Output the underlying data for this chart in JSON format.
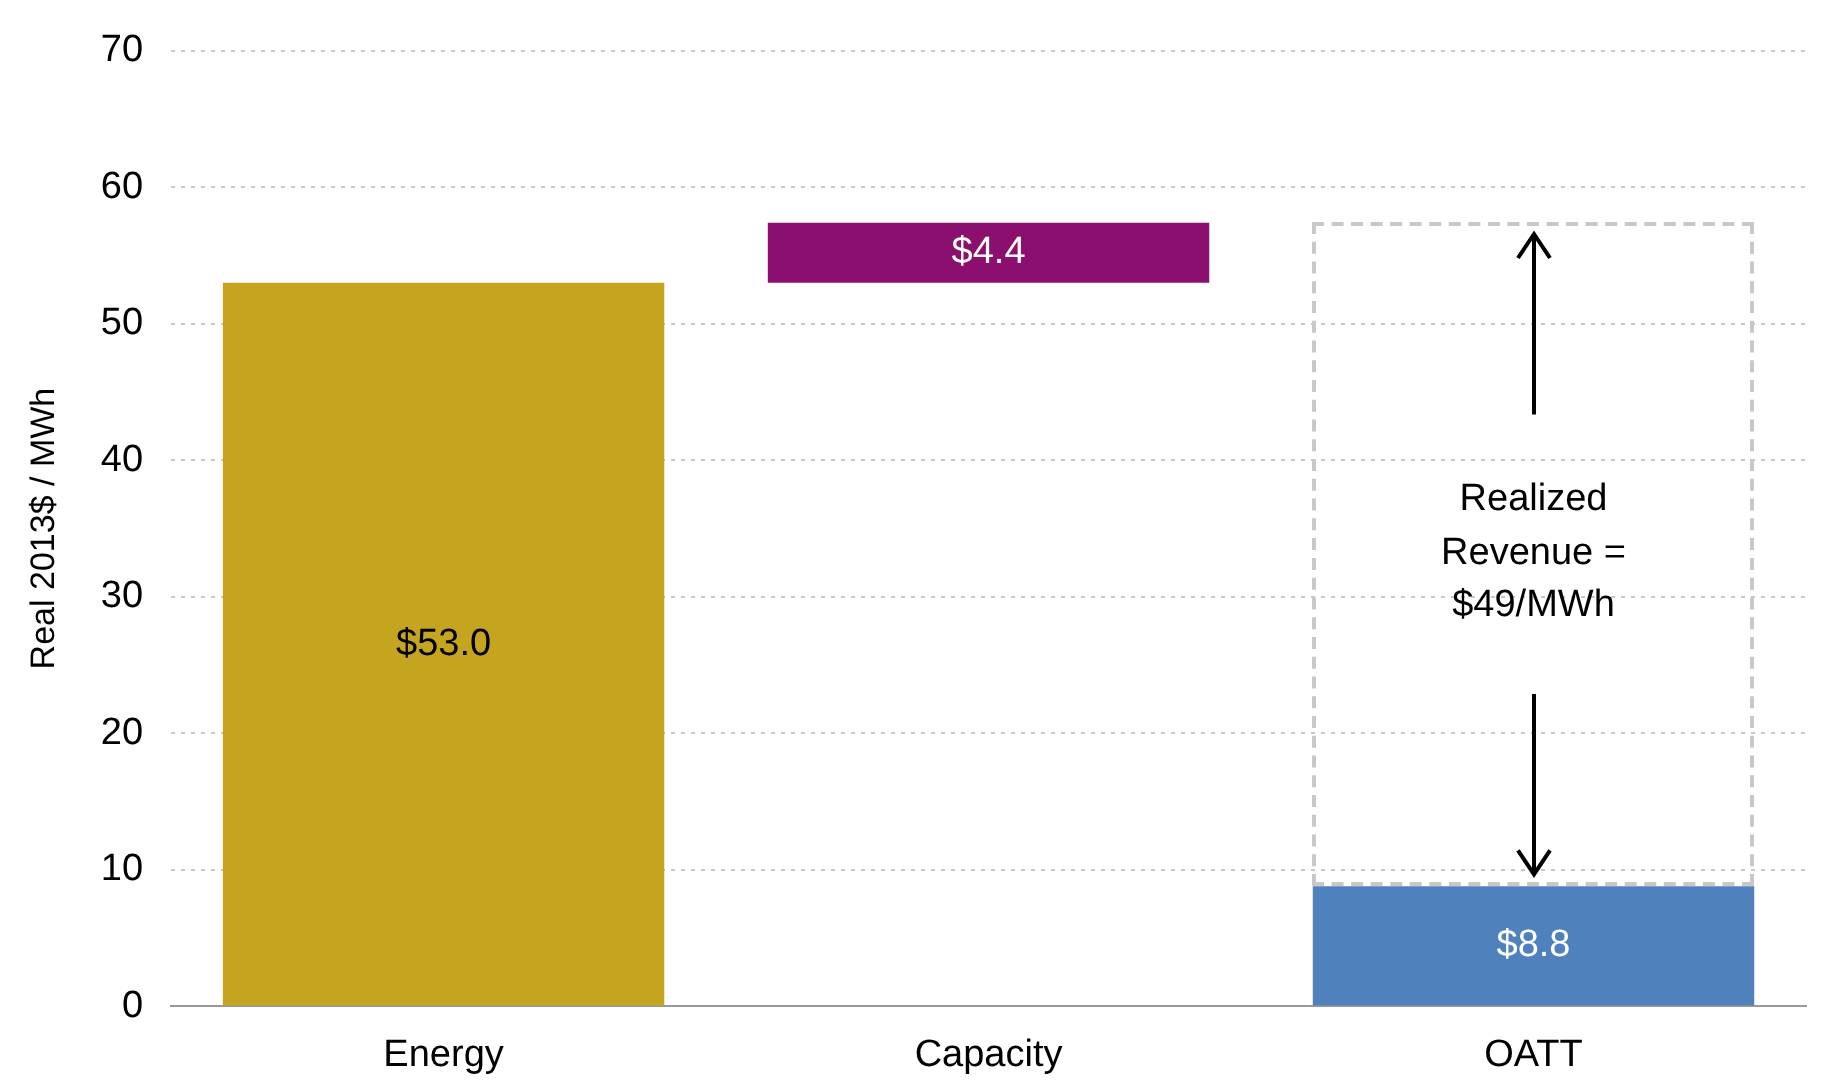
{
  "chart_data": {
    "type": "bar",
    "ylabel": "Real 2013$ / MWh",
    "categories": [
      "Energy",
      "Capacity",
      "OATT"
    ],
    "values": [
      53.0,
      4.4,
      8.8
    ],
    "base": [
      0,
      53.0,
      0
    ],
    "colors": [
      "#c5a51f",
      "#8b0f6e",
      "#4f81bd"
    ],
    "value_labels": [
      "$53.0",
      "$4.4",
      "$8.8"
    ],
    "ylim": [
      0,
      70
    ],
    "yticks": [
      0,
      10,
      20,
      30,
      40,
      50,
      60,
      70
    ],
    "grid": "y",
    "legend": false,
    "annotations": [
      "Realized Revenue = $49/MWh"
    ]
  }
}
